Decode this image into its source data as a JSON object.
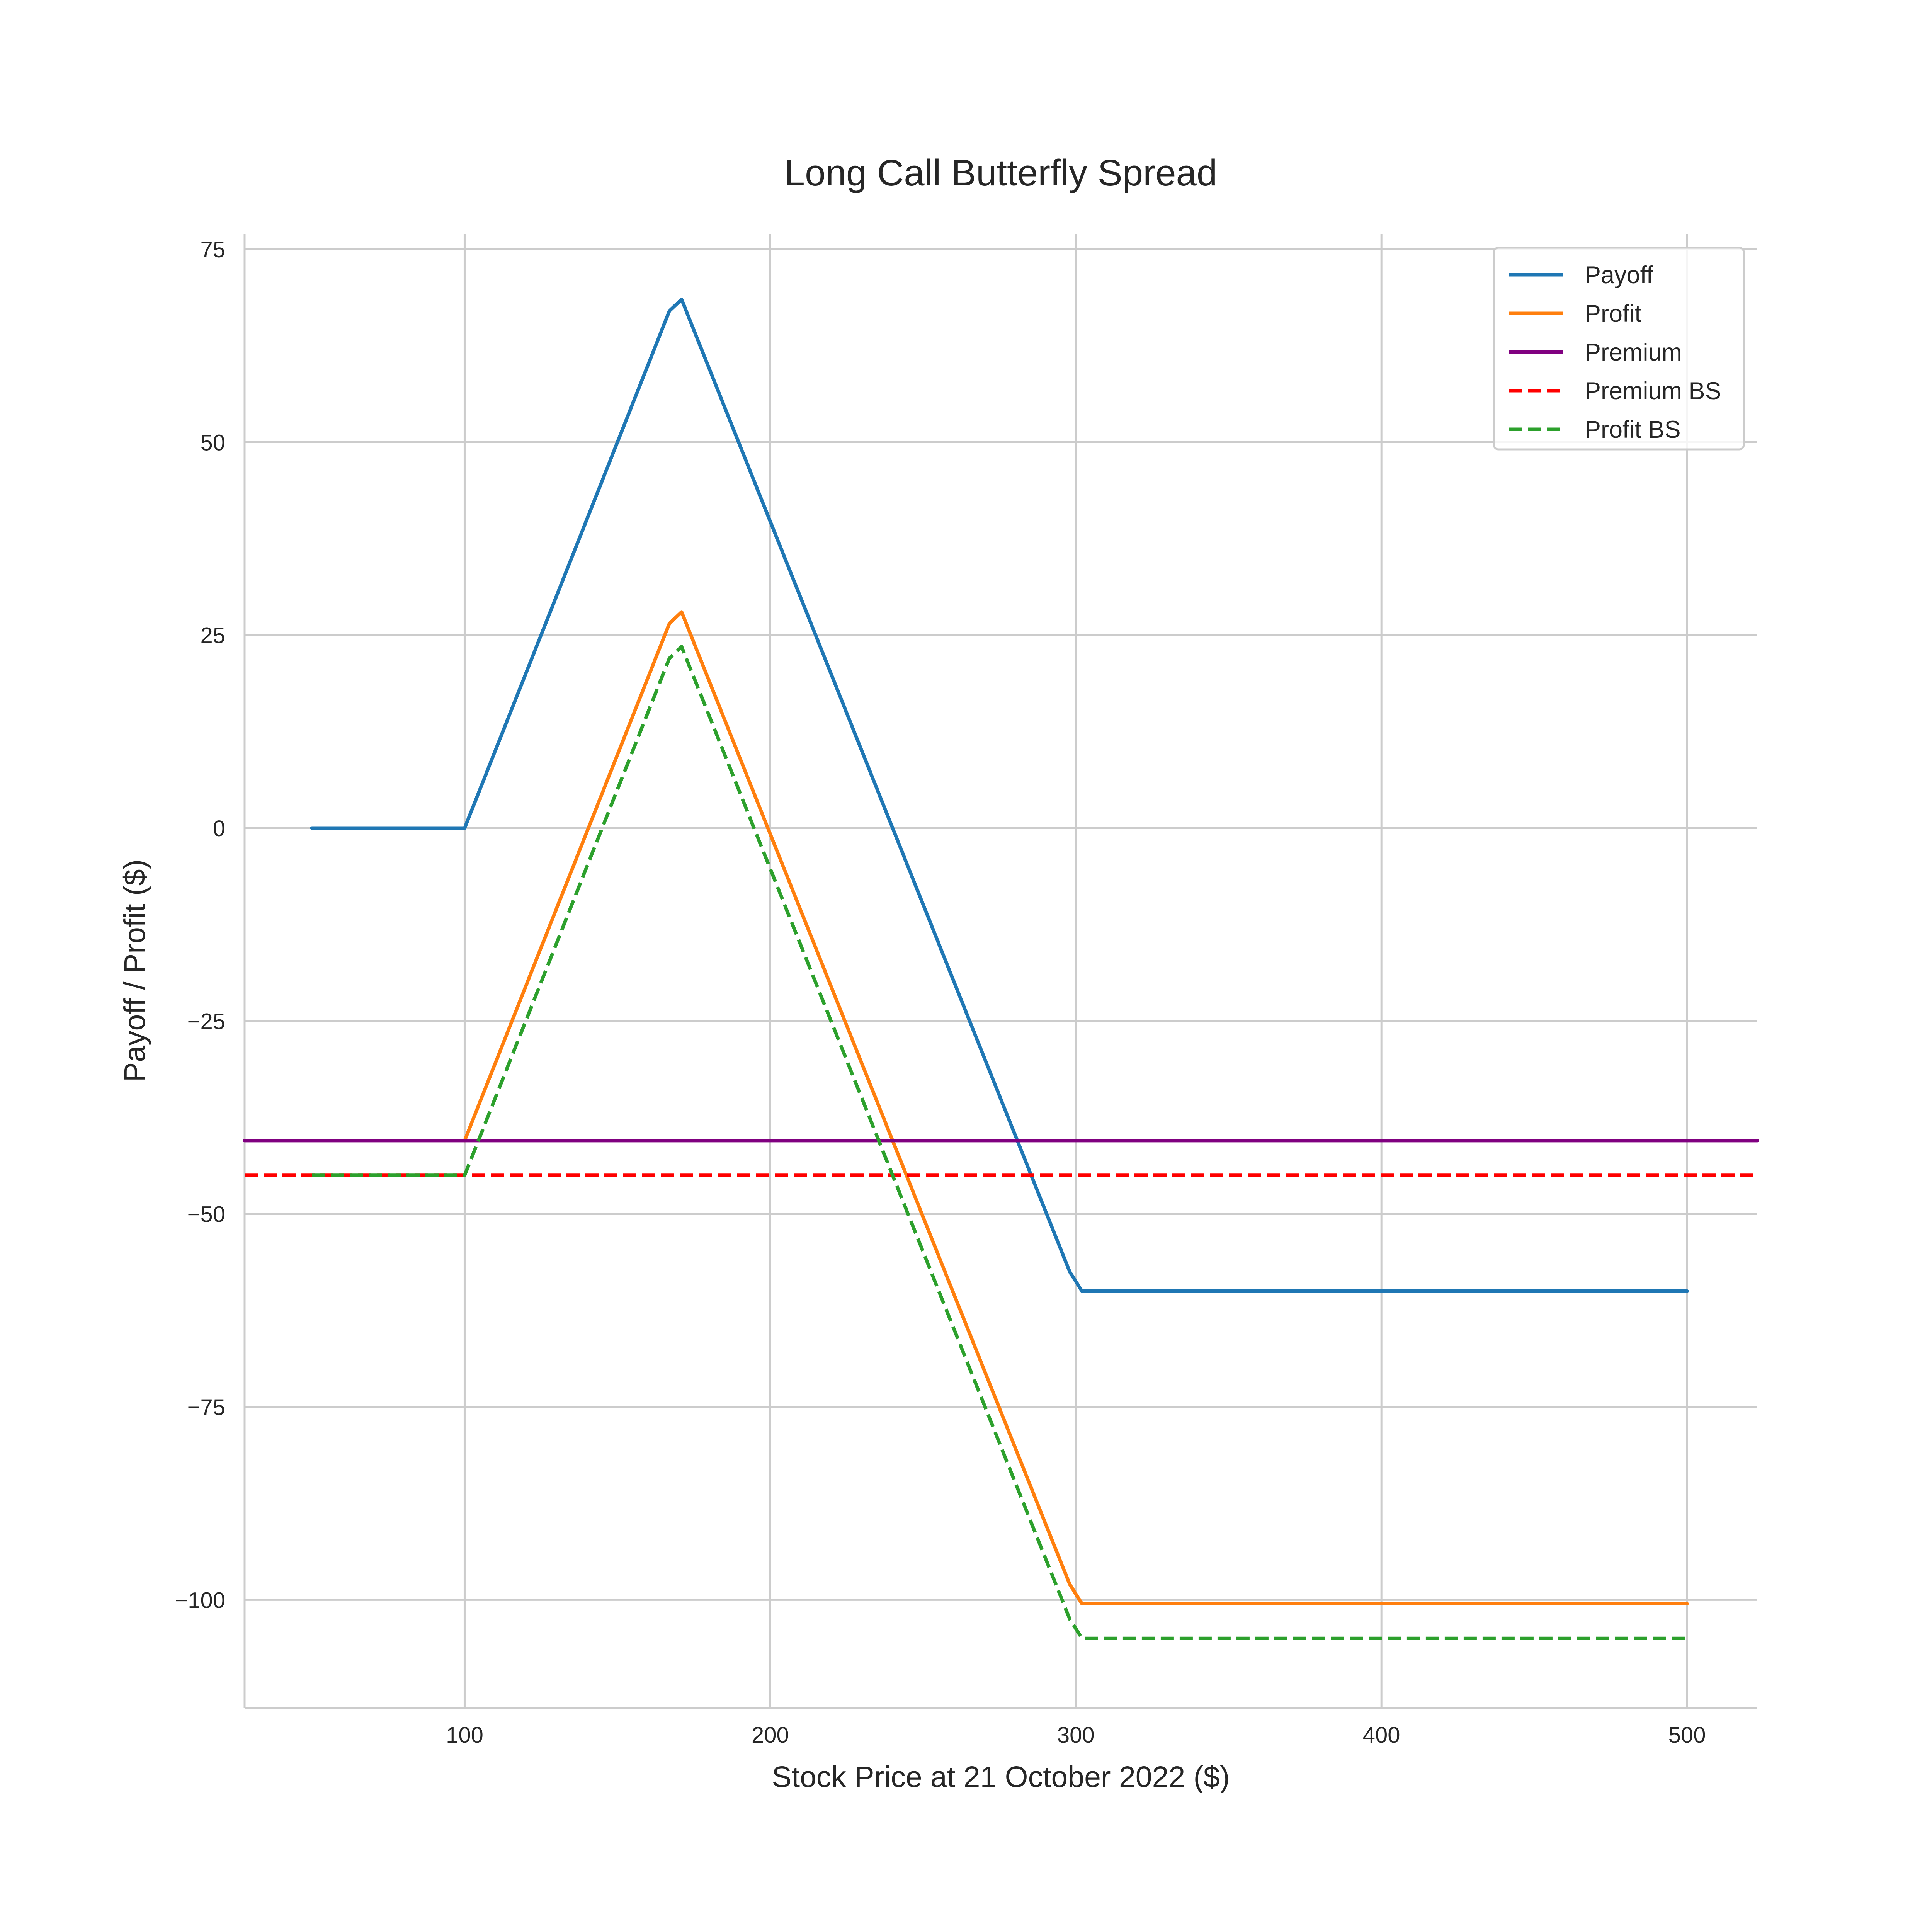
{
  "chart_data": {
    "type": "line",
    "title": "Long Call Butterfly Spread",
    "xlabel": "Stock Price at 21 October 2022 ($)",
    "ylabel": "Payoff / Profit ($)",
    "xlim": [
      28,
      523
    ],
    "ylim": [
      -114,
      77
    ],
    "xticks": [
      100,
      200,
      300,
      400,
      500
    ],
    "yticks": [
      75,
      50,
      25,
      0,
      -25,
      -50,
      -75,
      -100
    ],
    "xtick_labels": [
      "100",
      "200",
      "300",
      "400",
      "500"
    ],
    "ytick_labels": [
      "75",
      "50",
      "25",
      "0",
      "−25",
      "−50",
      "−75",
      "−100"
    ],
    "grid": true,
    "legend_position": "top-right",
    "series": [
      {
        "name": "Payoff",
        "color": "#1f77b4",
        "style": "solid",
        "x": [
          50,
          100,
          104,
          167,
          171,
          298,
          302,
          500
        ],
        "y": [
          0,
          0,
          4,
          67,
          68.5,
          -57.5,
          -60,
          -60
        ]
      },
      {
        "name": "Profit",
        "color": "#ff7f0e",
        "style": "solid",
        "x": [
          100,
          104,
          167,
          171,
          298,
          302,
          500
        ],
        "y": [
          -40.5,
          -36.5,
          26.5,
          28,
          -98,
          -100.5,
          -100.5
        ]
      },
      {
        "name": "Premium",
        "color": "#800080",
        "style": "solid",
        "x": [
          28,
          523
        ],
        "y": [
          -40.5,
          -40.5
        ]
      },
      {
        "name": "Premium BS",
        "color": "#ff0000",
        "style": "dashed",
        "x": [
          28,
          523
        ],
        "y": [
          -45,
          -45
        ]
      },
      {
        "name": "Profit BS",
        "color": "#2ca02c",
        "style": "dashed",
        "x": [
          50,
          100,
          104,
          167,
          171,
          298,
          302,
          500
        ],
        "y": [
          -45,
          -45,
          -41,
          22,
          23.5,
          -102.5,
          -105,
          -105
        ]
      }
    ]
  }
}
